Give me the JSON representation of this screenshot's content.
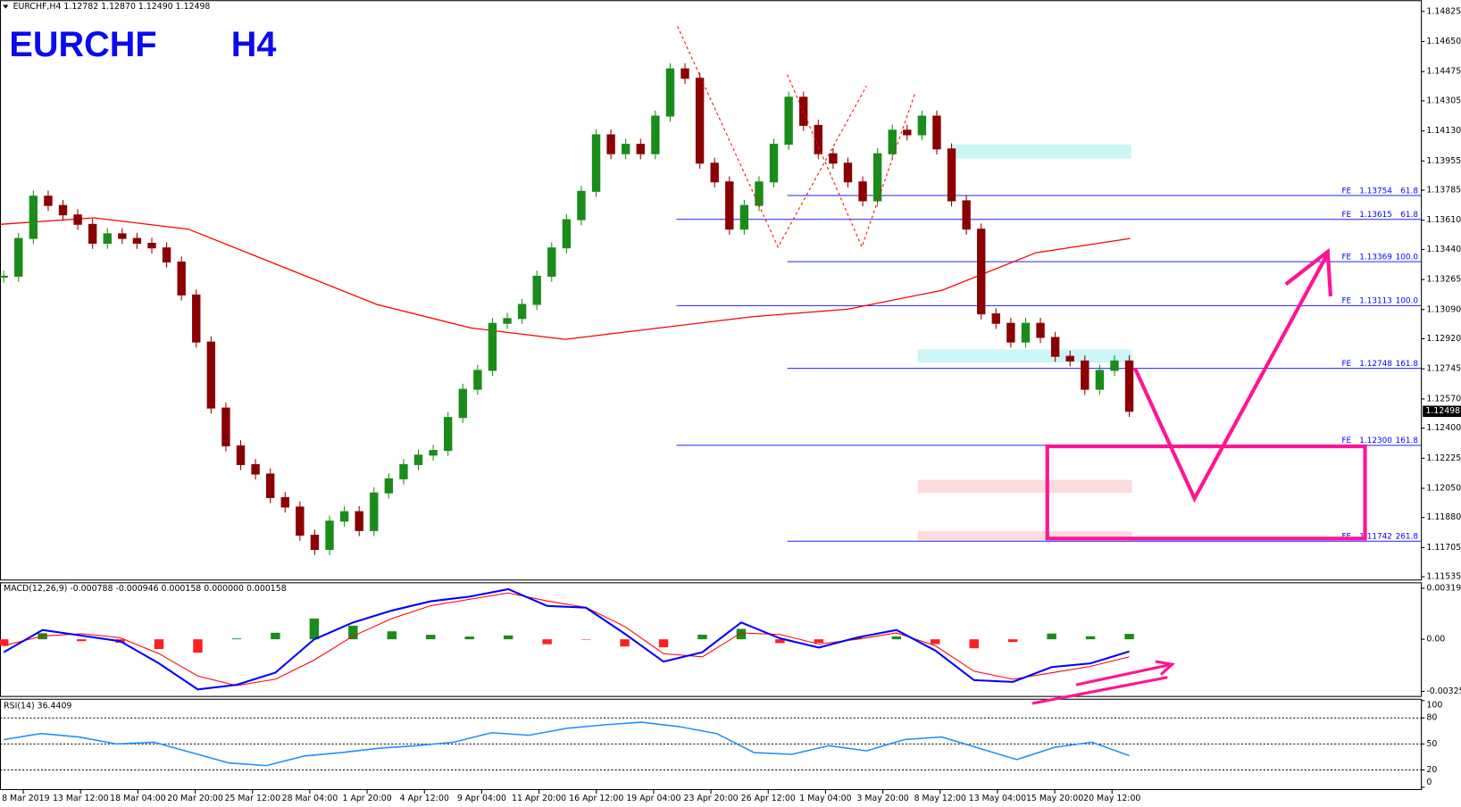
{
  "header": {
    "symbol_info": "EURCHF,H4  1.12782 1.12870 1.12490 1.12498",
    "title_symbol": "EURCHF",
    "title_timeframe": "H4"
  },
  "price_panel": {
    "ylim": [
      1.11519,
      1.14885
    ],
    "yticks": [
      1.14825,
      {
        "value": 1.1465,
        "label": "1.14650"
      },
      1.14475,
      1.14305,
      {
        "value": 1.1413,
        "label": "1.14130"
      },
      1.13955,
      1.13785,
      {
        "value": 1.1361,
        "label": "1.13610"
      },
      {
        "value": 1.1344,
        "label": "1.13440"
      },
      1.13265,
      {
        "value": 1.1309,
        "label": "1.13090"
      },
      {
        "value": 1.1292,
        "label": "1.12920"
      },
      1.12745,
      {
        "value": 1.1257,
        "label": "1.12570"
      },
      {
        "value": 1.124,
        "label": "1.12400"
      },
      1.12225,
      {
        "value": 1.1205,
        "label": "1.12050"
      },
      {
        "value": 1.1188,
        "label": "1.11880"
      },
      1.11705,
      1.11535
    ],
    "current_price": 1.12498,
    "up_color": "#1a8c1a",
    "down_color": "#8b0000",
    "close": [
      1.13284,
      1.13504,
      1.1375,
      1.13696,
      1.13641,
      1.13586,
      1.13476,
      1.13531,
      1.13504,
      1.13476,
      1.13449,
      1.13367,
      1.13175,
      1.12901,
      1.12517,
      1.12297,
      1.12188,
      1.12133,
      1.11996,
      1.11941,
      1.11777,
      1.11694,
      1.11859,
      1.11914,
      1.11804,
      1.12023,
      1.12105,
      1.12188,
      1.12243,
      1.1227,
      1.12462,
      1.12626,
      1.12736,
      1.1301,
      1.13038,
      1.1312,
      1.13284,
      1.13449,
      1.13613,
      1.13778,
      1.14107,
      1.13997,
      1.14052,
      1.13997,
      1.14216,
      1.14491,
      1.14436,
      1.13942,
      1.13833,
      1.13558,
      1.13696,
      1.13833,
      1.14052,
      1.14326,
      1.14162,
      1.13997,
      1.13942,
      1.13833,
      1.13723,
      1.13997,
      1.14134,
      1.14107,
      1.14216,
      1.14025,
      1.13723,
      1.13558,
      1.13065,
      1.1301,
      1.12901,
      1.1301,
      1.12928,
      1.12818,
      1.12791,
      1.12626,
      1.12736,
      1.12791,
      1.12498
    ],
    "ma_color": "#ff0000",
    "ma": [
      1.13586,
      1.13624,
      1.13558,
      1.13339,
      1.1312,
      1.12983,
      1.12917,
      1.12983,
      1.13049,
      1.13092,
      1.13202,
      1.13421,
      1.13504
    ],
    "fe_tag": "FE",
    "fe_levels": [
      {
        "value": 1.13754,
        "ratio": "61.8"
      },
      {
        "value": 1.13615,
        "ratio": "61.8"
      },
      {
        "value": 1.13369,
        "ratio": "100.0"
      },
      {
        "value": 1.13113,
        "ratio": "100.0"
      },
      {
        "value": 1.12748,
        "ratio": "161.8"
      },
      {
        "value": 1.123,
        "label": "1.12300",
        "ratio": "161.8"
      },
      {
        "value": 1.11742,
        "ratio": "261.8"
      }
    ]
  },
  "macd_panel": {
    "label": "MACD(12,26,9) -0.000788 -0.000946 0.000158 0.000000 0.000158",
    "ylim": [
      -0.00355,
      0.00345
    ],
    "yticks": [
      0.003195,
      {
        "value": 0,
        "label": "0.00"
      },
      -0.003259
    ],
    "macd": [
      -0.00081,
      0.00058,
      0.00023,
      -0.00012,
      -0.00151,
      -0.00314,
      -0.00285,
      -0.00209,
      0,
      0.00105,
      0.0018,
      0.00238,
      0.00267,
      0.00314,
      0.00209,
      0.00198,
      0.00035,
      -0.0014,
      -0.00081,
      0.00105,
      6e-05,
      -0.00052,
      0.00012,
      0.00058,
      -0.0007,
      -0.00256,
      -0.00267,
      -0.00174,
      -0.00151,
      -0.00076
    ],
    "signal": [
      -0.0004,
      0.0002,
      0.00035,
      0.0001,
      -0.0009,
      -0.0023,
      -0.0029,
      -0.0025,
      -0.0013,
      0.0002,
      0.0013,
      0.0021,
      0.0025,
      0.0029,
      0.0024,
      0.002,
      0.0008,
      -0.0009,
      -0.0011,
      0.0004,
      0.0003,
      -0.0003,
      0,
      0.0004,
      -0.0004,
      -0.002,
      -0.0025,
      -0.0021,
      -0.0017,
      -0.0011
    ]
  },
  "rsi_panel": {
    "label": "RSI(14) 36.4409",
    "ylim": [
      0,
      100
    ],
    "yticks": [
      100,
      80,
      50,
      20,
      0
    ],
    "values": [
      55,
      62,
      58,
      50,
      52,
      40,
      28,
      25,
      36,
      40,
      45,
      48,
      52,
      63,
      60,
      68,
      72,
      75,
      70,
      62,
      40,
      38,
      48,
      42,
      55,
      58,
      45,
      32,
      46,
      52,
      36.4409
    ]
  },
  "x_axis": {
    "labels": [
      "8 Mar 2019",
      "13 Mar 12:00",
      "18 Mar 04:00",
      "20 Mar 20:00",
      "25 Mar 12:00",
      "28 Mar 04:00",
      "1 Apr 20:00",
      "4 Apr 12:00",
      "9 Apr 04:00",
      "11 Apr 20:00",
      "16 Apr 12:00",
      "19 Apr 04:00",
      "23 Apr 20:00",
      "26 Apr 12:00",
      "1 May 04:00",
      "3 May 20:00",
      "8 May 12:00",
      "13 May 04:00",
      "15 May 20:00",
      "20 May 12:00"
    ]
  }
}
